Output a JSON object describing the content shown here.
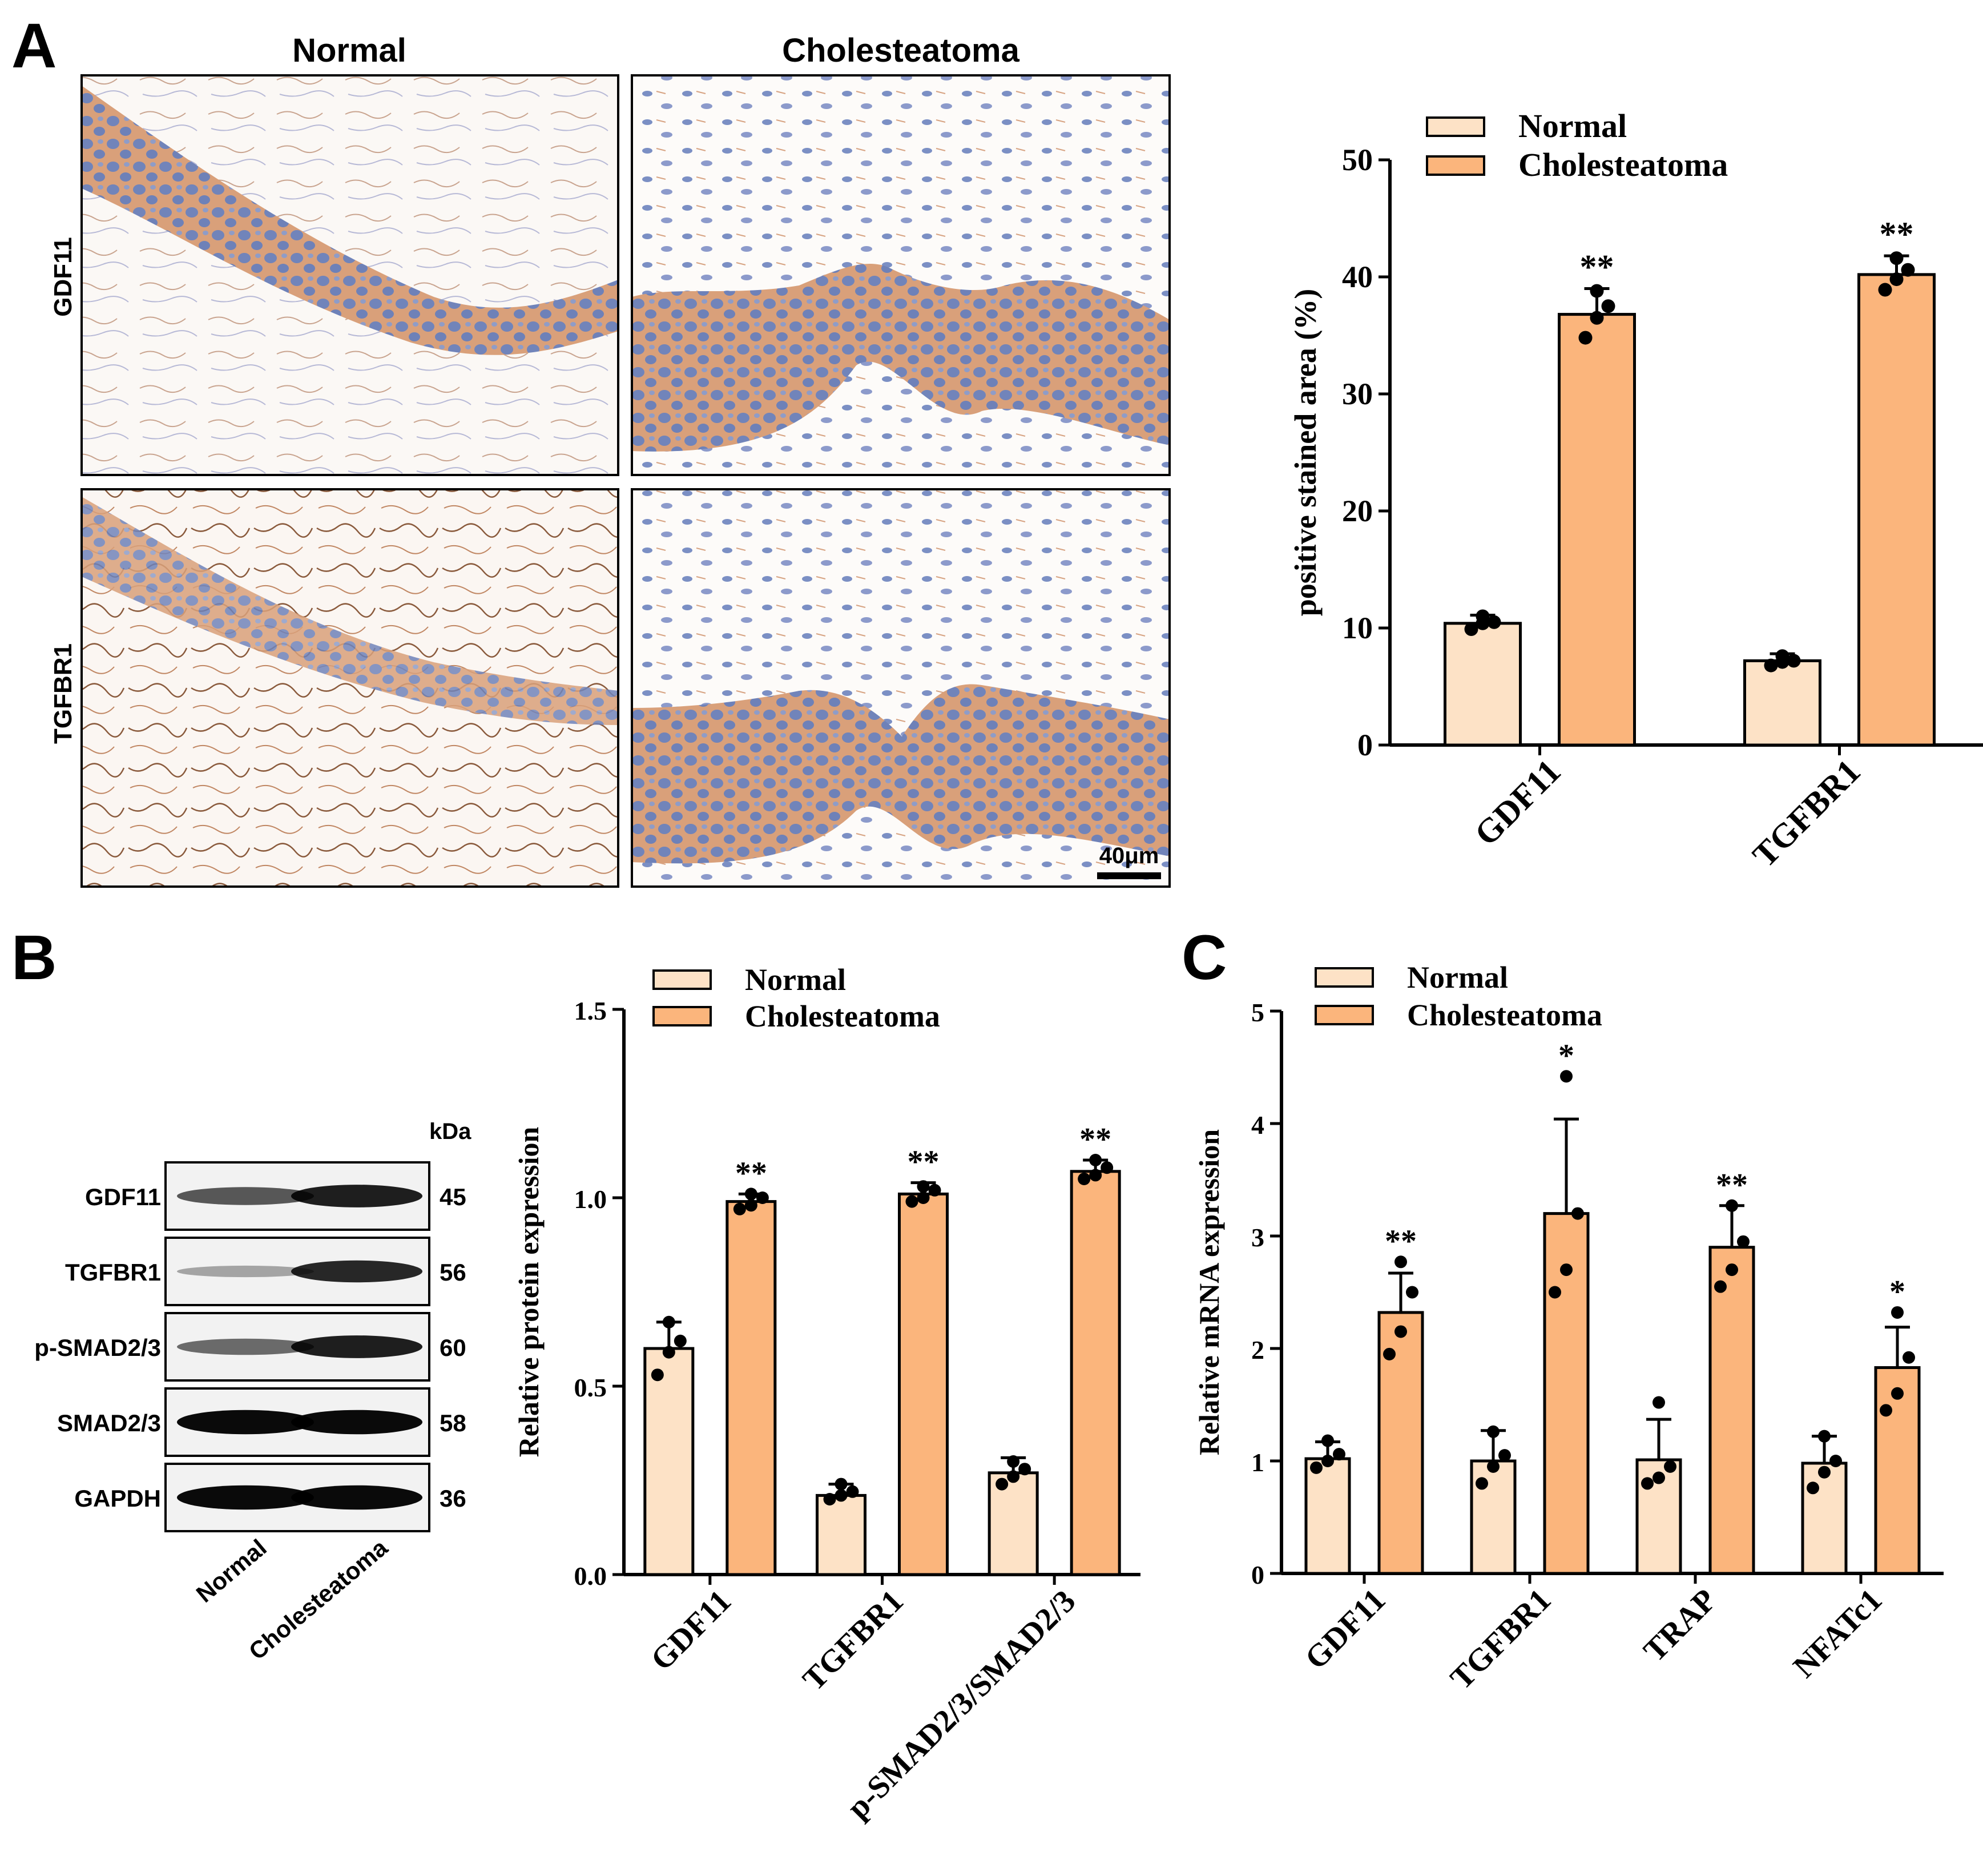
{
  "panel_letters": {
    "a": "A",
    "b": "B",
    "c": "C"
  },
  "colors": {
    "normal": "#fde2c6",
    "cholesteatoma": "#fbb57c",
    "tissue_stain": "#c98a5c",
    "nuclei": "#6a7fb6",
    "background": "#ffffff"
  },
  "panel_a": {
    "column_titles": [
      "Normal",
      "Cholesteatoma"
    ],
    "row_labels": [
      "GDF11",
      "TGFBR1"
    ],
    "scale_bar": "40μm"
  },
  "panel_b_blot": {
    "unit": "kDa",
    "rows": [
      {
        "label": "GDF11",
        "kda": "45",
        "normal_intensity": 0.55,
        "chol_intensity": 0.85
      },
      {
        "label": "TGFBR1",
        "kda": "56",
        "normal_intensity": 0.15,
        "chol_intensity": 0.8
      },
      {
        "label": "p-SMAD2/3",
        "kda": "60",
        "normal_intensity": 0.45,
        "chol_intensity": 0.85
      },
      {
        "label": "SMAD2/3",
        "kda": "58",
        "normal_intensity": 0.95,
        "chol_intensity": 0.95
      },
      {
        "label": "GAPDH",
        "kda": "36",
        "normal_intensity": 0.95,
        "chol_intensity": 0.95
      }
    ],
    "lanes": [
      "Normal",
      "Cholesteatoma"
    ]
  },
  "chart_data": [
    {
      "type": "bar",
      "panel": "A",
      "categories": [
        "GDF11",
        "TGFBR1"
      ],
      "series": [
        {
          "name": "Normal",
          "values": [
            10.4,
            7.2
          ],
          "errors": [
            0.7,
            0.6
          ],
          "points": [
            [
              9.9,
              10.4,
              10.5,
              11.0
            ],
            [
              6.8,
              7.1,
              7.2,
              7.6
            ]
          ]
        },
        {
          "name": "Cholesteatoma",
          "values": [
            36.8,
            40.2
          ],
          "errors": [
            2.2,
            1.6
          ],
          "points": [
            [
              34.8,
              36.5,
              37.5,
              38.8
            ],
            [
              38.9,
              39.8,
              40.6,
              41.6
            ]
          ]
        }
      ],
      "significance": [
        [
          "",
          "**"
        ],
        [
          "",
          "**"
        ]
      ],
      "ylabel": "positive stained area (%)",
      "ylim": [
        0,
        50
      ],
      "yticks": [
        "0",
        "10",
        "20",
        "30",
        "40",
        "50"
      ],
      "legend": "top-left"
    },
    {
      "type": "bar",
      "panel": "B",
      "categories": [
        "GDF11",
        "TGFBR1",
        "p-SMAD2/3/SMAD2/3"
      ],
      "series": [
        {
          "name": "Normal",
          "values": [
            0.6,
            0.21,
            0.27
          ],
          "errors": [
            0.07,
            0.03,
            0.04
          ],
          "points": [
            [
              0.53,
              0.59,
              0.62,
              0.67
            ],
            [
              0.2,
              0.21,
              0.22,
              0.24
            ],
            [
              0.24,
              0.26,
              0.28,
              0.3
            ]
          ]
        },
        {
          "name": "Cholesteatoma",
          "values": [
            0.99,
            1.01,
            1.07
          ],
          "errors": [
            0.02,
            0.03,
            0.03
          ],
          "points": [
            [
              0.97,
              0.98,
              1.0,
              1.01
            ],
            [
              0.99,
              1.0,
              1.02,
              1.03
            ],
            [
              1.05,
              1.06,
              1.08,
              1.1
            ]
          ]
        }
      ],
      "significance": [
        [
          "",
          "**"
        ],
        [
          "",
          "**"
        ],
        [
          "",
          "**"
        ]
      ],
      "ylabel": "Relative protein expression",
      "ylim": [
        0,
        1.5
      ],
      "yticks": [
        "0.0",
        "0.5",
        "1.0",
        "1.5"
      ],
      "legend": "top-left"
    },
    {
      "type": "bar",
      "panel": "C",
      "categories": [
        "GDF11",
        "TGFBR1",
        "TRAP",
        "NFATc1"
      ],
      "series": [
        {
          "name": "Normal",
          "values": [
            1.02,
            1.0,
            1.01,
            0.98
          ],
          "errors": [
            0.15,
            0.27,
            0.36,
            0.24
          ],
          "points": [
            [
              0.94,
              1.0,
              1.06,
              1.18
            ],
            [
              0.8,
              0.95,
              1.05,
              1.26
            ],
            [
              0.8,
              0.85,
              0.95,
              1.52
            ],
            [
              0.76,
              0.9,
              1.0,
              1.22
            ]
          ]
        },
        {
          "name": "Cholesteatoma",
          "values": [
            2.32,
            3.2,
            2.9,
            1.83
          ],
          "errors": [
            0.35,
            0.84,
            0.37,
            0.36
          ],
          "points": [
            [
              1.95,
              2.15,
              2.5,
              2.77
            ],
            [
              2.5,
              2.7,
              3.2,
              4.42
            ],
            [
              2.55,
              2.7,
              2.95,
              3.27
            ],
            [
              1.45,
              1.6,
              1.92,
              2.32
            ]
          ]
        }
      ],
      "significance": [
        [
          "",
          "**"
        ],
        [
          "",
          "*"
        ],
        [
          "",
          "**"
        ],
        [
          "",
          "*"
        ]
      ],
      "ylabel": "Relative mRNA expression",
      "ylim": [
        0,
        5
      ],
      "yticks": [
        "0",
        "1",
        "2",
        "3",
        "4",
        "5"
      ],
      "legend": "top-left"
    }
  ]
}
